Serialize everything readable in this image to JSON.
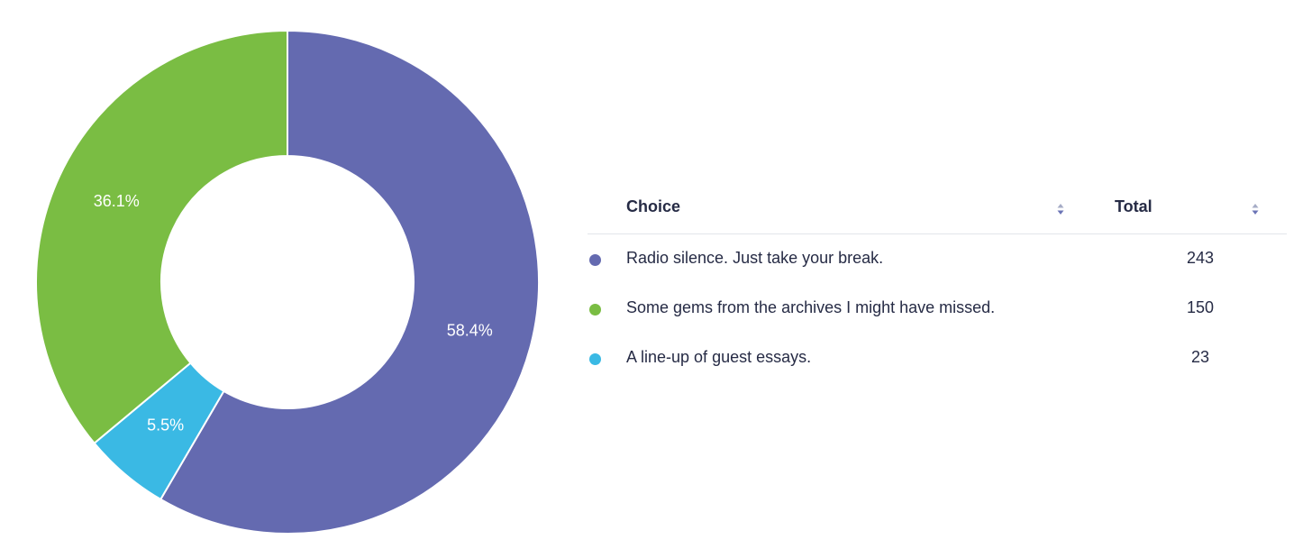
{
  "chart_data": {
    "type": "pie",
    "donut": true,
    "categories": [
      "Radio silence. Just take your break.",
      "A line-up of guest essays.",
      "Some gems from the archives I might have missed."
    ],
    "values": [
      243,
      23,
      150
    ],
    "percent_labels": [
      "58.4%",
      "5.5%",
      "36.1%"
    ],
    "colors": [
      "#646ab0",
      "#3ab9e4",
      "#7abd43"
    ]
  },
  "table": {
    "headers": {
      "choice": "Choice",
      "total": "Total"
    },
    "rows": [
      {
        "choice": "Radio silence. Just take your break.",
        "total": "243",
        "color": "#646ab0"
      },
      {
        "choice": "Some gems from the archives I might have missed.",
        "total": "150",
        "color": "#7abd43"
      },
      {
        "choice": "A line-up of guest essays.",
        "total": "23",
        "color": "#3ab9e4"
      }
    ]
  },
  "icons": {
    "sort": "sort-updown-icon",
    "legend": "circle-dot-icon"
  }
}
